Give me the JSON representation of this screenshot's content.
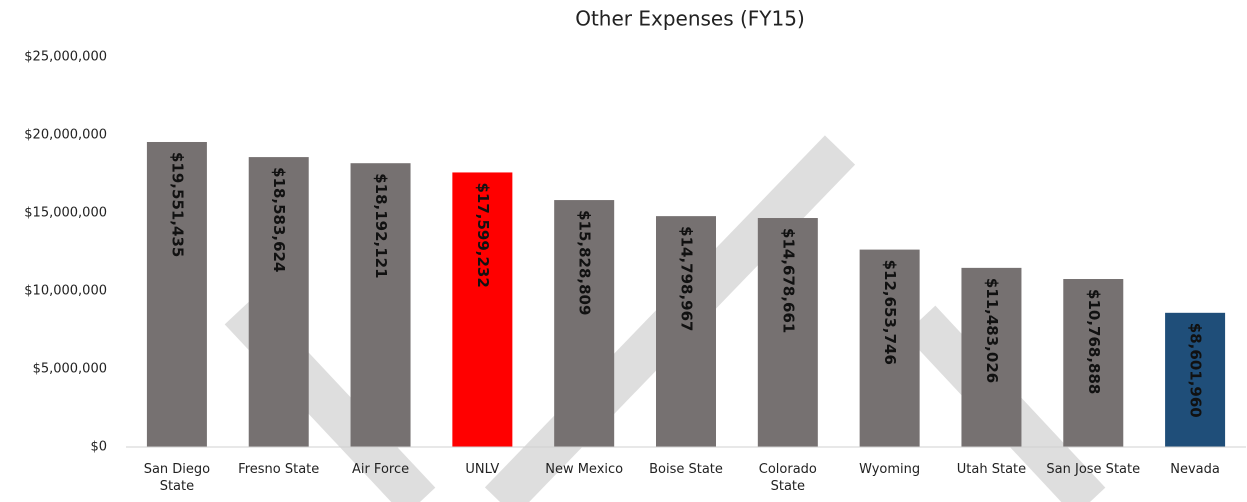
{
  "chart_data": {
    "type": "bar",
    "title": "Other Expenses (FY15)",
    "categories": [
      "San Diego State",
      "Fresno State",
      "Air Force",
      "UNLV",
      "New Mexico",
      "Boise State",
      "Colorado State",
      "Wyoming",
      "Utah State",
      "San Jose State",
      "Nevada"
    ],
    "values": [
      19551435,
      18583624,
      18192121,
      17599232,
      15828809,
      14798967,
      14678661,
      12653746,
      11483026,
      10768888,
      8601960
    ],
    "value_labels": [
      "$19,551,435",
      "$18,583,624",
      "$18,192,121",
      "$17,599,232",
      "$15,828,809",
      "$14,798,967",
      "$14,678,661",
      "$12,653,746",
      "$11,483,026",
      "$10,768,888",
      "$8,601,960"
    ],
    "colors": [
      "#767171",
      "#767171",
      "#767171",
      "#ff0000",
      "#767171",
      "#767171",
      "#767171",
      "#767171",
      "#767171",
      "#767171",
      "#1f4e79"
    ],
    "ylim": [
      0,
      25000000
    ],
    "yticks": [
      {
        "value": 0,
        "label": "$0"
      },
      {
        "value": 5000000,
        "label": "$5,000,000"
      },
      {
        "value": 10000000,
        "label": "$10,000,000"
      },
      {
        "value": 15000000,
        "label": "$15,000,000"
      },
      {
        "value": 20000000,
        "label": "$20,000,000"
      },
      {
        "value": 25000000,
        "label": "$25,000,000"
      }
    ],
    "grid": false
  }
}
